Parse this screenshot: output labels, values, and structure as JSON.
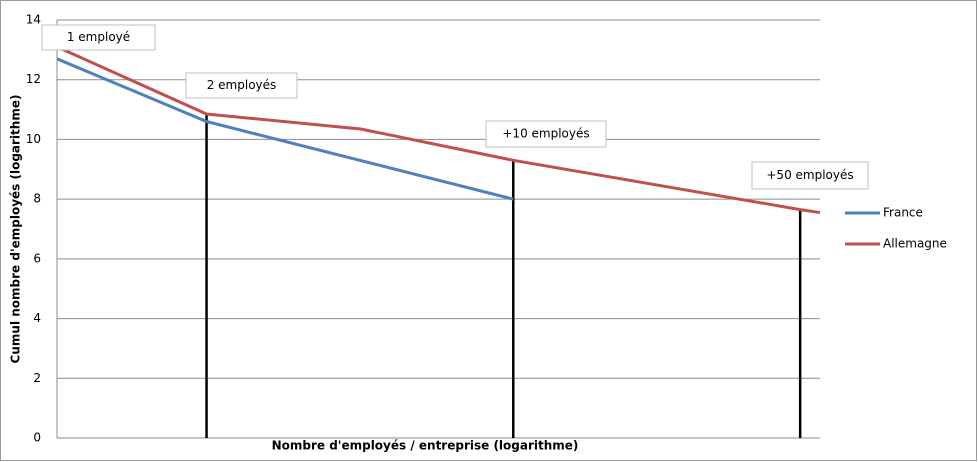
{
  "chart_data": {
    "type": "line",
    "xlabel": "Nombre d'employés / entreprise (logarithme)",
    "ylabel": "Cumul nombre d'employés (logarithme)",
    "xlim": [
      0,
      5
    ],
    "ylim": [
      0,
      14
    ],
    "yticks": [
      0,
      2,
      4,
      6,
      8,
      10,
      12,
      14
    ],
    "grid": true,
    "legend": "right",
    "series": [
      {
        "name": "France",
        "color": "#4f81bd",
        "x": [
          0,
          0.98,
          2.99
        ],
        "values": [
          12.7,
          10.6,
          8.0
        ]
      },
      {
        "name": "Allemagne",
        "color": "#c0504d",
        "x": [
          0,
          0.98,
          1.99,
          2.99,
          4.87,
          5.0
        ],
        "values": [
          13.1,
          10.85,
          10.35,
          9.3,
          7.65,
          7.55
        ]
      }
    ],
    "droplines": [
      0.98,
      2.99,
      4.87
    ],
    "annotations": [
      "1 employé",
      "2 employés",
      "+10 employés",
      "+50 employés"
    ]
  }
}
